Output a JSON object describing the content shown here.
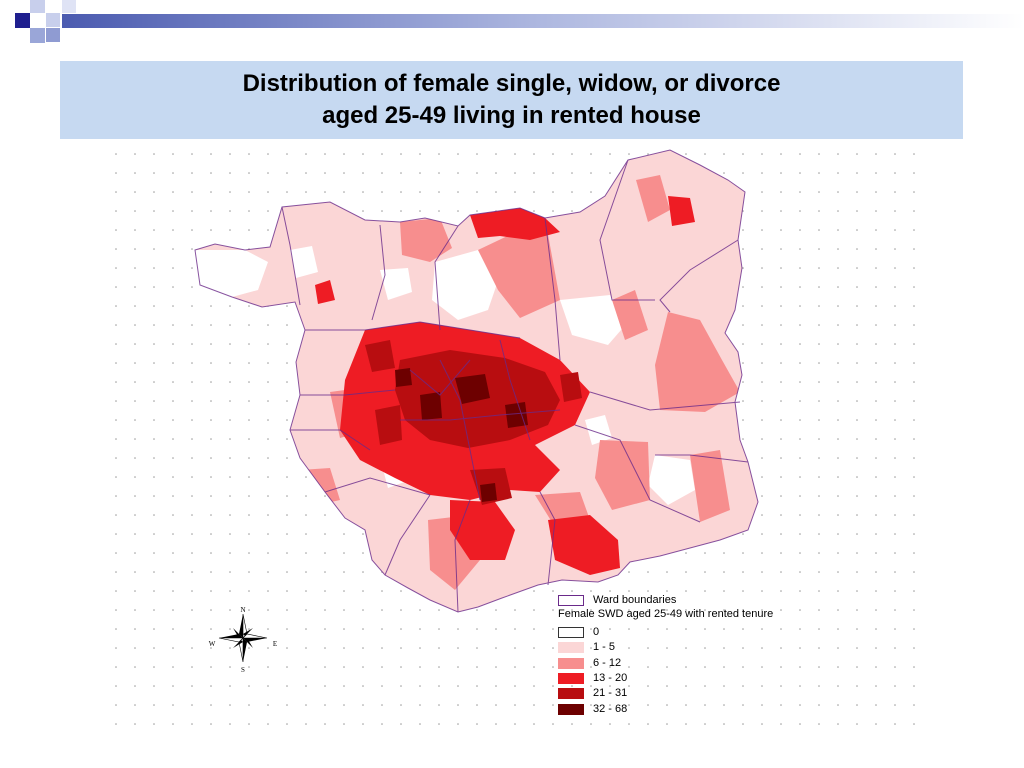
{
  "slide": {
    "title_line1": "Distribution of female single, widow, or divorce",
    "title_line2": "aged 25-49 living in rented house"
  },
  "colors": {
    "title_box": "#c6d9f1",
    "decor_navy": "#1f1f8f",
    "decor_blue": "#9aa6d8",
    "ward_border": "#6a2a8a",
    "class_0": "#ffffff",
    "class_1": "#fbd6d6",
    "class_2": "#f78e8e",
    "class_3": "#ee1c24",
    "class_4": "#b80d10",
    "class_5": "#6d0000"
  },
  "compass": {
    "north": "N",
    "south": "S",
    "east": "E",
    "west": "W"
  },
  "legend": {
    "boundary_label": "Ward boundaries",
    "title": "Female SWD aged 25-49 with rented tenure",
    "classes": [
      {
        "label": "0",
        "color": "#ffffff"
      },
      {
        "label": "1 - 5",
        "color": "#fbd6d6"
      },
      {
        "label": "6 - 12",
        "color": "#f78e8e"
      },
      {
        "label": "13 - 20",
        "color": "#ee1c24"
      },
      {
        "label": "21 - 31",
        "color": "#b80d10"
      },
      {
        "label": "32 - 68",
        "color": "#6d0000"
      }
    ]
  }
}
